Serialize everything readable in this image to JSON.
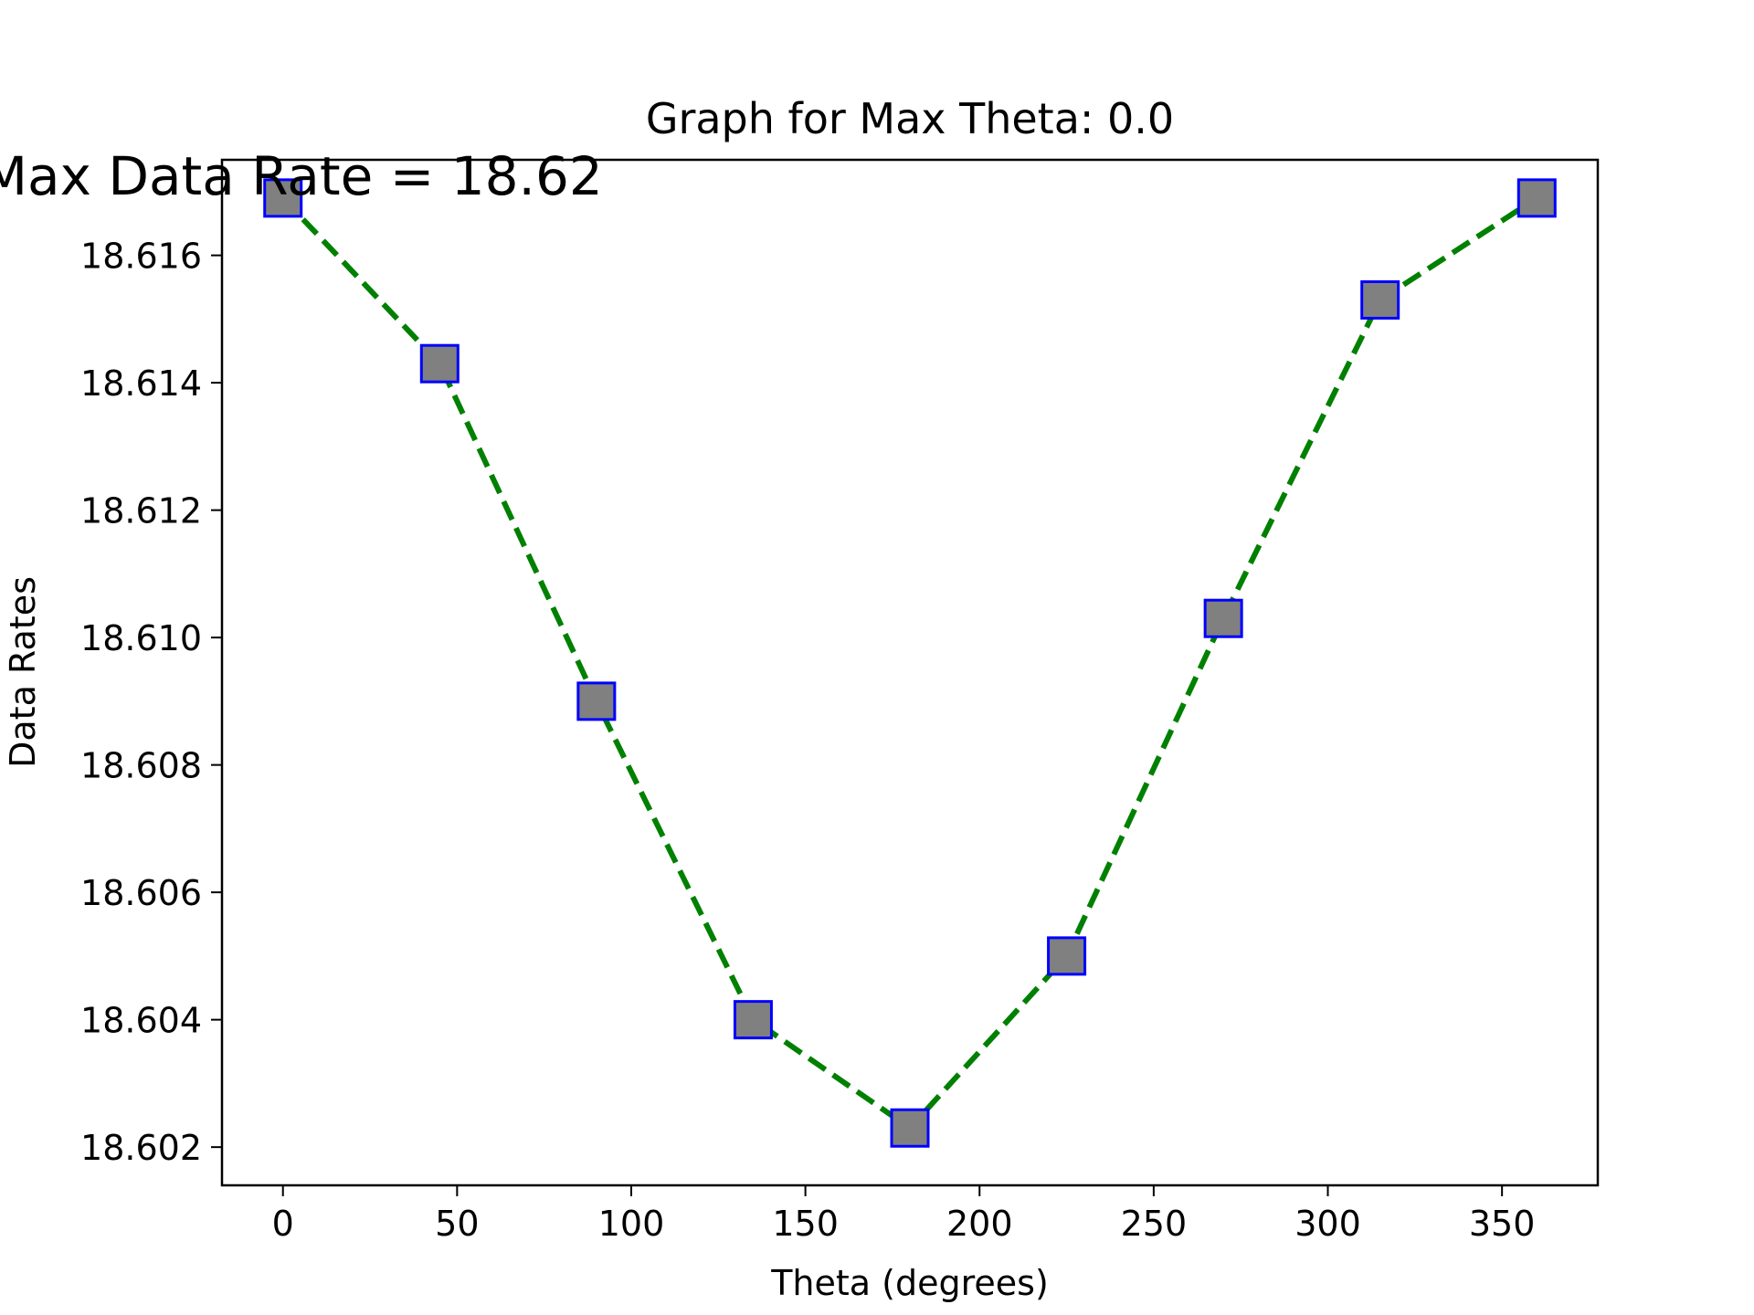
{
  "chart_data": {
    "type": "line",
    "title": "Graph for Max Theta: 0.0",
    "annotation": "Max Data Rate = 18.62",
    "xlabel": "Theta (degrees)",
    "ylabel": "Data Rates",
    "x": [
      0,
      45,
      90,
      135,
      180,
      225,
      270,
      315,
      360
    ],
    "series": [
      {
        "values": [
          18.6169,
          18.6143,
          18.609,
          18.604,
          18.6023,
          18.605,
          18.6103,
          18.6153,
          18.6169
        ],
        "line_color": "#008000",
        "line_style": "dashed",
        "marker": "square",
        "marker_face": "#808080",
        "marker_edge": "#0000ff"
      }
    ],
    "xlim": [
      -17.5,
      377.5
    ],
    "ylim": [
      18.6014,
      18.6175
    ],
    "xticks": [
      0,
      50,
      100,
      150,
      200,
      250,
      300,
      350
    ],
    "yticks": [
      18.602,
      18.604,
      18.606,
      18.608,
      18.61,
      18.612,
      18.614,
      18.616
    ],
    "ytick_format": 3,
    "grid": false,
    "legend": "none"
  }
}
